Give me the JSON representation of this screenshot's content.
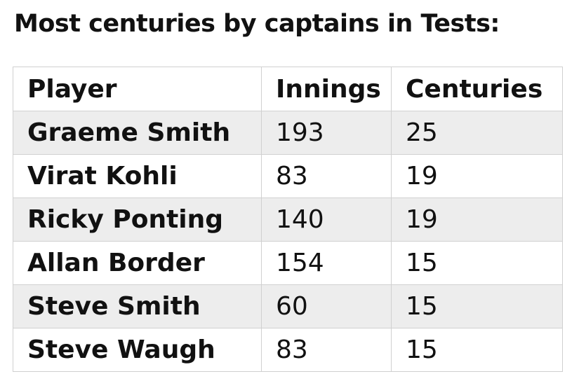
{
  "title": "Most centuries by captains in Tests:",
  "table": {
    "header": [
      "Player",
      "Innings",
      "Centuries"
    ],
    "rows": [
      [
        "Graeme Smith",
        193,
        25
      ],
      [
        "Virat Kohli",
        83,
        19
      ],
      [
        "Ricky Ponting",
        140,
        19
      ],
      [
        "Allan Border",
        154,
        15
      ],
      [
        "Steve Smith",
        60,
        15
      ],
      [
        "Steve Waugh",
        83,
        15
      ]
    ]
  }
}
